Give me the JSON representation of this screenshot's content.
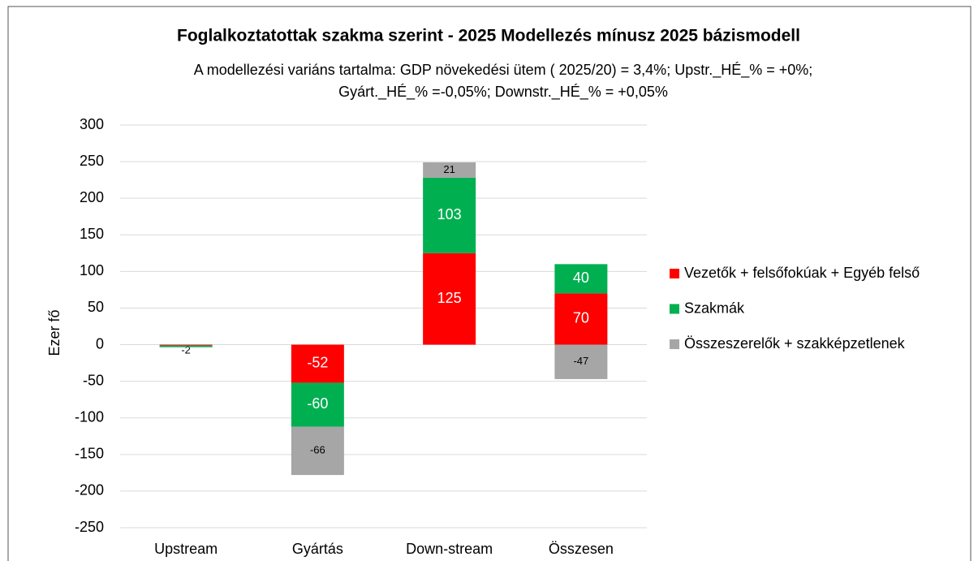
{
  "chart_data": {
    "type": "stacked_bar",
    "title": "Foglalkoztatottak szakma szerint - 2025 Modellezés mínusz 2025 bázismodell",
    "subtitle": [
      "A modellezési variáns tartalma: GDP növekedési ütem ( 2025/20) = 3,4%; Upstr._HÉ_% = +0%;",
      "Gyárt._HÉ_% =-0,05%; Downstr._HÉ_% = +0,05%"
    ],
    "y_label": "Ezer fő",
    "categories": [
      "Upstream",
      "Gyártás",
      "Down-stream",
      "Összesen"
    ],
    "series": [
      {
        "name": "Vezetők + felsőfokúak + Egyéb felső",
        "color": "#ff0000",
        "values": [
          -1,
          -52,
          125,
          70
        ],
        "value_labels": [
          null,
          "-52",
          "125",
          "70"
        ]
      },
      {
        "name": "Szakmák",
        "color": "#00b050",
        "values": [
          -2,
          -60,
          103,
          40
        ],
        "value_labels": [
          "-2",
          "-60",
          "103",
          "40"
        ]
      },
      {
        "name": "Összeszerelők + szakképzetlenek",
        "color": "#a6a6a6",
        "values": [
          -1,
          -66,
          21,
          -47
        ],
        "value_labels": [
          null,
          "-66",
          "21",
          "-47"
        ]
      }
    ],
    "ylim": [
      -250,
      300
    ],
    "yticks": [
      -250,
      -200,
      -150,
      -100,
      -50,
      0,
      50,
      100,
      150,
      200,
      250,
      300
    ],
    "grid": true,
    "legend": "right"
  }
}
